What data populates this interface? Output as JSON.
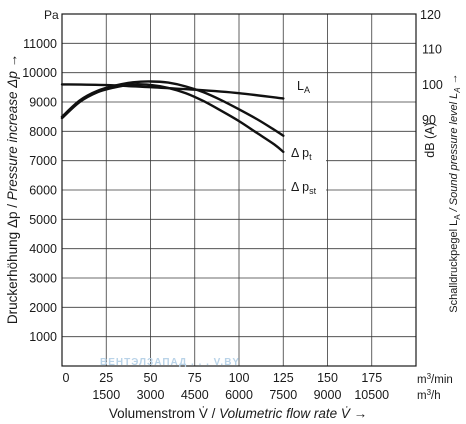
{
  "chart_data": {
    "type": "line",
    "units": {
      "left_axis": "Pa",
      "right_axis_top": "120",
      "x_primary": "m3/min",
      "x_secondary": "m3/h"
    },
    "ylabel_left_plain": "Druckerhöhung Δp / ",
    "ylabel_left_italic": "Pressure increase Δp →",
    "ylabel_right_plain": "Schalldruckpegel L",
    "ylabel_right_sub": "A",
    "ylabel_right_italic": " / Sound pressure level L",
    "ylabel_right_italic_sub": "A",
    "ylabel_right_arrow": " →",
    "ylabel_right_unit": "dB (A)",
    "xlabel_plain": "Volumenstrom V̇ / ",
    "xlabel_italic": "Volumetric flow rate V̇ →",
    "ylim": [
      0,
      12000
    ],
    "xlim": [
      0,
      200
    ],
    "right_ylim": [
      20,
      120
    ],
    "left_ticks": [
      1000,
      2000,
      3000,
      4000,
      5000,
      6000,
      7000,
      8000,
      9000,
      10000,
      11000
    ],
    "left_tick_labels": [
      "1000",
      "2000",
      "3000",
      "4000",
      "5000",
      "6000",
      "7000",
      "8000",
      "9000",
      "10000",
      "11000"
    ],
    "right_ticks": [
      90,
      100,
      110,
      120
    ],
    "right_tick_labels": [
      "90",
      "100",
      "110",
      "120"
    ],
    "x_ticks": [
      0,
      25,
      50,
      75,
      100,
      125,
      150,
      175
    ],
    "x_tick_labels": [
      "0",
      "25",
      "50",
      "75",
      "100",
      "125",
      "150",
      "175"
    ],
    "x_secondary_tick_labels": [
      "",
      "1500",
      "3000",
      "4500",
      "6000",
      "7500",
      "9000",
      "10500"
    ],
    "grid": true,
    "series": [
      {
        "name": "L",
        "name_sub": "A",
        "axis": "right",
        "x": [
          0,
          25,
          50,
          75,
          100,
          125
        ],
        "y": [
          100.0,
          99.8,
          99.2,
          98.5,
          97.5,
          96.0
        ]
      },
      {
        "name": "Δ p",
        "name_sub": "t",
        "axis": "left",
        "x": [
          0,
          10,
          20,
          30,
          40,
          50,
          60,
          70,
          80,
          90,
          100,
          110,
          120,
          125
        ],
        "y": [
          8500,
          9050,
          9380,
          9560,
          9670,
          9700,
          9660,
          9530,
          9330,
          9060,
          8750,
          8420,
          8050,
          7850
        ]
      },
      {
        "name": "Δ p",
        "name_sub": "st",
        "axis": "left",
        "x": [
          0,
          10,
          20,
          30,
          40,
          50,
          60,
          70,
          80,
          90,
          100,
          110,
          120,
          125
        ],
        "y": [
          8450,
          9000,
          9330,
          9500,
          9600,
          9580,
          9480,
          9300,
          9030,
          8700,
          8350,
          7950,
          7550,
          7300
        ]
      }
    ],
    "watermark": "ВЕНТЭЛЗАПАД . . . V.BY"
  }
}
